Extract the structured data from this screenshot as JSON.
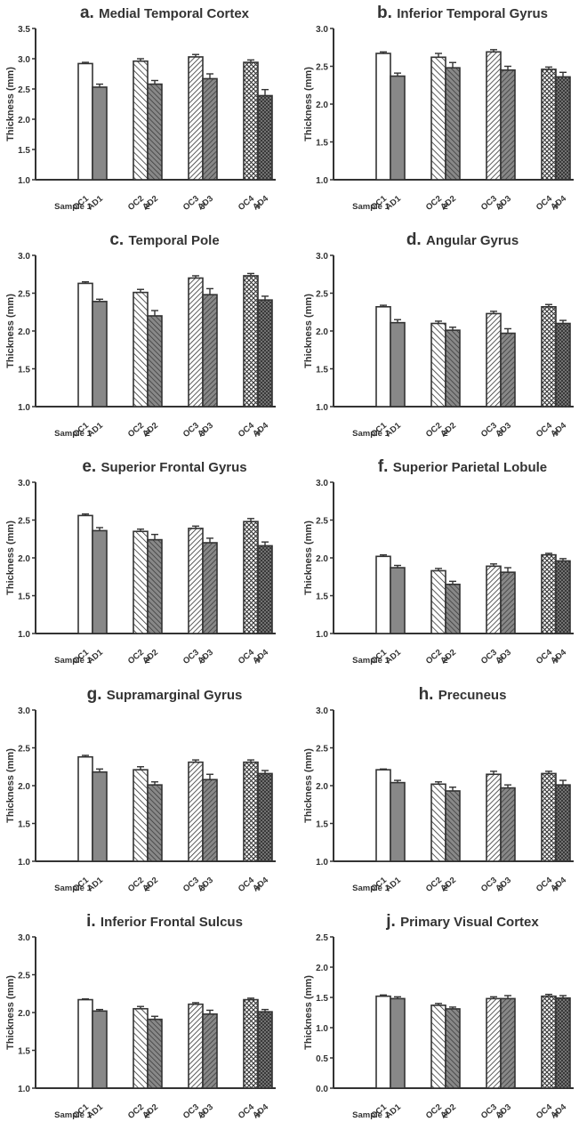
{
  "colors": {
    "axis": "#333333",
    "oc_fill": "#ffffff",
    "ad_fill": "#888888",
    "hatch_stroke": "#333333",
    "bar_stroke": "#333333"
  },
  "sample_labels": [
    "Sample 1",
    "2",
    "3",
    "4"
  ],
  "chart_data": [
    {
      "type": "bar",
      "letter": "a.",
      "title": "Medial Temporal Cortex",
      "ylabel": "Thickness  (mm)",
      "ylim": [
        1.0,
        3.5
      ],
      "yticks": [
        "1.0",
        "1.5",
        "2.0",
        "2.5",
        "3.0",
        "3.5"
      ],
      "categories": [
        "OC1",
        "AD1",
        "OC2",
        "AD2",
        "OC3",
        "AD3",
        "OC4",
        "AD4"
      ],
      "values": [
        2.92,
        2.53,
        2.96,
        2.58,
        3.03,
        2.67,
        2.94,
        2.39
      ],
      "errors": [
        0.02,
        0.05,
        0.04,
        0.06,
        0.04,
        0.08,
        0.04,
        0.1
      ]
    },
    {
      "type": "bar",
      "letter": "b.",
      "title": "Inferior Temporal Gyrus",
      "ylabel": "Thickness  (mm)",
      "ylim": [
        1.0,
        3.0
      ],
      "yticks": [
        "1.0",
        "1.5",
        "2.0",
        "2.5",
        "3.0"
      ],
      "categories": [
        "OC1",
        "AD1",
        "OC2",
        "AD2",
        "OC3",
        "AD3",
        "OC4",
        "AD4"
      ],
      "values": [
        2.67,
        2.37,
        2.62,
        2.48,
        2.69,
        2.45,
        2.46,
        2.36
      ],
      "errors": [
        0.02,
        0.04,
        0.05,
        0.07,
        0.03,
        0.05,
        0.03,
        0.06
      ]
    },
    {
      "type": "bar",
      "letter": "c.",
      "title": "Temporal Pole",
      "ylabel": "Thickness  (mm)",
      "ylim": [
        1.0,
        3.0
      ],
      "yticks": [
        "1.0",
        "1.5",
        "2.0",
        "2.5",
        "3.0"
      ],
      "categories": [
        "OC1",
        "AD1",
        "OC2",
        "AD2",
        "OC3",
        "AD3",
        "OC4",
        "AD4"
      ],
      "values": [
        2.63,
        2.39,
        2.51,
        2.2,
        2.7,
        2.48,
        2.73,
        2.41
      ],
      "errors": [
        0.02,
        0.03,
        0.04,
        0.07,
        0.03,
        0.08,
        0.03,
        0.05
      ]
    },
    {
      "type": "bar",
      "letter": "d.",
      "title": "Angular Gyrus",
      "ylabel": "Thickness  (mm)",
      "ylim": [
        1.0,
        3.0
      ],
      "yticks": [
        "1.0",
        "1.5",
        "2.0",
        "2.5",
        "3.0"
      ],
      "categories": [
        "OC1",
        "AD1",
        "OC2",
        "AD2",
        "OC3",
        "AD3",
        "OC4",
        "AD4"
      ],
      "values": [
        2.32,
        2.11,
        2.1,
        2.01,
        2.23,
        1.97,
        2.32,
        2.1
      ],
      "errors": [
        0.02,
        0.04,
        0.03,
        0.04,
        0.03,
        0.06,
        0.03,
        0.04
      ]
    },
    {
      "type": "bar",
      "letter": "e.",
      "title": "Superior Frontal Gyrus",
      "ylabel": "Thickness  (mm)",
      "ylim": [
        1.0,
        3.0
      ],
      "yticks": [
        "1.0",
        "1.5",
        "2.0",
        "2.5",
        "3.0"
      ],
      "categories": [
        "OC1",
        "AD1",
        "OC2",
        "AD2",
        "OC3",
        "AD3",
        "OC4",
        "AD4"
      ],
      "values": [
        2.56,
        2.36,
        2.35,
        2.24,
        2.39,
        2.2,
        2.48,
        2.16
      ],
      "errors": [
        0.02,
        0.04,
        0.03,
        0.07,
        0.03,
        0.06,
        0.04,
        0.05
      ]
    },
    {
      "type": "bar",
      "letter": "f.",
      "title": "Superior Parietal Lobule",
      "ylabel": "Thickness  (mm)",
      "ylim": [
        1.0,
        3.0
      ],
      "yticks": [
        "1.0",
        "1.5",
        "2.0",
        "2.5",
        "3.0"
      ],
      "categories": [
        "OC1",
        "AD1",
        "OC2",
        "AD2",
        "OC3",
        "AD3",
        "OC4",
        "AD4"
      ],
      "values": [
        2.02,
        1.87,
        1.83,
        1.65,
        1.89,
        1.81,
        2.04,
        1.96
      ],
      "errors": [
        0.02,
        0.03,
        0.03,
        0.04,
        0.03,
        0.06,
        0.02,
        0.03
      ]
    },
    {
      "type": "bar",
      "letter": "g.",
      "title": "Supramarginal Gyrus",
      "ylabel": "Thickness  (mm)",
      "ylim": [
        1.0,
        3.0
      ],
      "yticks": [
        "1.0",
        "1.5",
        "2.0",
        "2.5",
        "3.0"
      ],
      "categories": [
        "OC1",
        "AD1",
        "OC2",
        "AD2",
        "OC3",
        "AD3",
        "OC4",
        "AD4"
      ],
      "values": [
        2.38,
        2.18,
        2.21,
        2.01,
        2.31,
        2.08,
        2.31,
        2.16
      ],
      "errors": [
        0.02,
        0.04,
        0.04,
        0.04,
        0.03,
        0.07,
        0.03,
        0.04
      ]
    },
    {
      "type": "bar",
      "letter": "h.",
      "title": "Precuneus",
      "ylabel": "Thickness  (mm)",
      "ylim": [
        1.0,
        3.0
      ],
      "yticks": [
        "1.0",
        "1.5",
        "2.0",
        "2.5",
        "3.0"
      ],
      "categories": [
        "OC1",
        "AD1",
        "OC2",
        "AD2",
        "OC3",
        "AD3",
        "OC4",
        "AD4"
      ],
      "values": [
        2.21,
        2.04,
        2.02,
        1.93,
        2.15,
        1.97,
        2.16,
        2.01
      ],
      "errors": [
        0.01,
        0.03,
        0.03,
        0.05,
        0.04,
        0.04,
        0.03,
        0.06
      ]
    },
    {
      "type": "bar",
      "letter": "i.",
      "title": "Inferior Frontal Sulcus",
      "ylabel": "Thickness  (mm)",
      "ylim": [
        1.0,
        3.0
      ],
      "yticks": [
        "1.0",
        "1.5",
        "2.0",
        "2.5",
        "3.0"
      ],
      "categories": [
        "OC1",
        "AD1",
        "OC2",
        "AD2",
        "OC3",
        "AD3",
        "OC4",
        "AD4"
      ],
      "values": [
        2.17,
        2.02,
        2.05,
        1.91,
        2.11,
        1.98,
        2.17,
        2.01
      ],
      "errors": [
        0.01,
        0.02,
        0.03,
        0.04,
        0.02,
        0.05,
        0.02,
        0.03
      ]
    },
    {
      "type": "bar",
      "letter": "j.",
      "title": "Primary Visual Cortex",
      "ylabel": "Thickness  (mm)",
      "ylim": [
        0.0,
        2.5
      ],
      "yticks": [
        "0.0",
        "0.5",
        "1.0",
        "1.5",
        "2.0",
        "2.5"
      ],
      "categories": [
        "OC1",
        "AD1",
        "OC2",
        "AD2",
        "OC3",
        "AD3",
        "OC4",
        "AD4"
      ],
      "values": [
        1.52,
        1.48,
        1.37,
        1.31,
        1.48,
        1.48,
        1.52,
        1.49
      ],
      "errors": [
        0.02,
        0.03,
        0.03,
        0.03,
        0.03,
        0.05,
        0.03,
        0.04
      ]
    }
  ]
}
